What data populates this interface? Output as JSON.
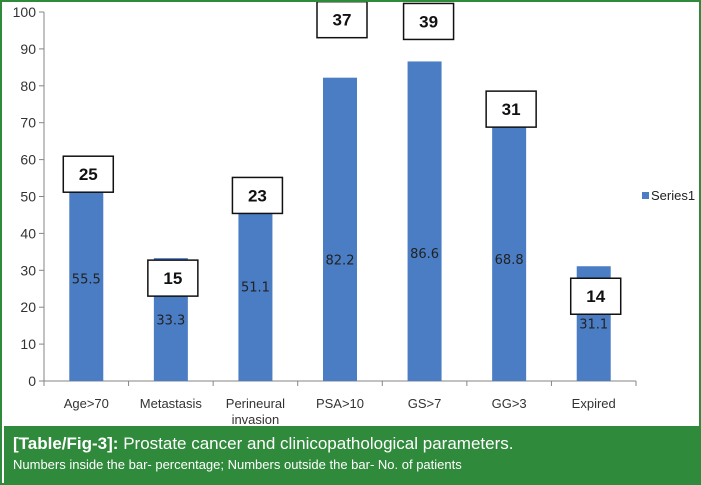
{
  "chart_data": {
    "type": "bar",
    "categories": [
      "Age>70",
      "Metastasis",
      "Perineural invasion",
      "PSA>10",
      "GS>7",
      "GG>3",
      "Expired"
    ],
    "category_lines": [
      [
        "Age>70"
      ],
      [
        "Metastasis"
      ],
      [
        "Perineural",
        "invasion"
      ],
      [
        "PSA>10"
      ],
      [
        "GS>7"
      ],
      [
        "GG>3"
      ],
      [
        "Expired"
      ]
    ],
    "series": [
      {
        "name": "Series1",
        "values": [
          55.5,
          33.3,
          51.1,
          82.2,
          86.6,
          68.8,
          31.1
        ],
        "data_labels": [
          "55.5",
          "33.3",
          "51.1",
          "82.2",
          "86.6",
          "68.8",
          "31.1"
        ],
        "color": "#4a7dc4"
      }
    ],
    "patient_counts": [
      "25",
      "15",
      "23",
      "37",
      "39",
      "31",
      "14"
    ],
    "ylim": [
      0,
      100
    ],
    "yticks": [
      0,
      10,
      20,
      30,
      40,
      50,
      60,
      70,
      80,
      90,
      100
    ],
    "grid": false,
    "legend_position": "right"
  },
  "caption": {
    "tag": "[Table/Fig-3]:",
    "title": "Prostate cancer and clinicopathological parameters.",
    "note": "Numbers inside the bar- percentage; Numbers outside the bar- No. of patients"
  },
  "colors": {
    "frame": "#2f8a3b",
    "caption_background": "#2f8a3b",
    "bar": "#4a7dc4",
    "axis": "#868686"
  }
}
